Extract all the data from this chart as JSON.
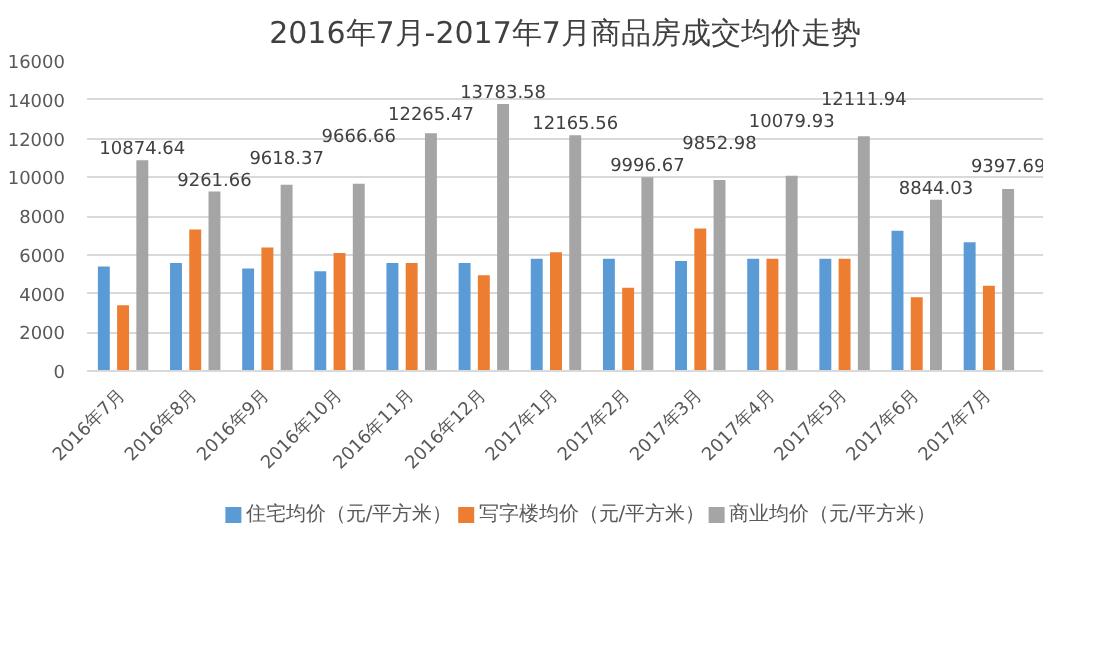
{
  "chart_data": {
    "type": "bar",
    "title": "2016年7月-2017年7月商品房成交均价走势",
    "categories": [
      "2016年7月",
      "2016年8月",
      "2016年9月",
      "2016年10月",
      "2016年11月",
      "2016年12月",
      "2017年1月",
      "2017年2月",
      "2017年3月",
      "2017年4月",
      "2017年5月",
      "2017年6月",
      "2017年7月"
    ],
    "series": [
      {
        "name": "住宅均价（元/平方米）",
        "color": "#5b9bd5",
        "values": [
          5400,
          5570,
          5290,
          5150,
          5570,
          5570,
          5790,
          5790,
          5680,
          5790,
          5790,
          7240,
          6650
        ]
      },
      {
        "name": "写字楼均价（元/平方米）",
        "color": "#ed7d31",
        "values": [
          3400,
          7300,
          6370,
          6090,
          5570,
          4940,
          6130,
          4300,
          7350,
          5790,
          5790,
          3810,
          4400
        ]
      },
      {
        "name": "商业均价（元/平方米）",
        "color": "#a5a5a5",
        "values": [
          10874.64,
          9261.66,
          9618.37,
          9666.66,
          12265.47,
          13783.58,
          12165.56,
          9996.67,
          9852.98,
          10079.93,
          12111.94,
          8844.03,
          9397.69
        ],
        "value_labels": [
          "10874.64",
          "9261.66",
          "9618.37",
          "9666.66",
          "12265.47",
          "13783.58",
          "12165.56",
          "9996.67",
          "9852.98",
          "10079.93",
          "12111.94",
          "8844.03",
          "9397.69"
        ]
      }
    ],
    "ylim": [
      0,
      16000
    ],
    "yticks": [
      0,
      2000,
      4000,
      6000,
      8000,
      10000,
      12000,
      14000,
      16000
    ],
    "grid": "y",
    "legend": "bottom"
  }
}
